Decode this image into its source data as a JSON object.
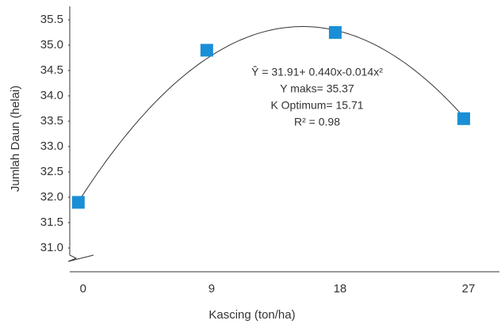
{
  "chart_data": {
    "type": "scatter",
    "x_label": "Kascing (ton/ha)",
    "y_label": "Jumlah Daun (helai)",
    "x": [
      0,
      9,
      18,
      27
    ],
    "series": [
      {
        "color": "#1a8fd6",
        "values": [
          31.9,
          34.9,
          35.25,
          33.55
        ]
      }
    ],
    "trendline": {
      "type": "polynomial",
      "coefficients": [
        31.91,
        0.44,
        -0.014
      ],
      "color": "#333333"
    },
    "annotations": [
      "Ŷ = 31.91+ 0.440x-0.014x²",
      "Y maks= 35.37",
      "K Optimum= 15.71",
      "R² = 0.98"
    ],
    "xlim": [
      -0.6,
      29.5
    ],
    "xticks": [
      0,
      9,
      18,
      27
    ],
    "ylim": [
      30.5,
      35.75
    ],
    "yticks": [
      {
        "value": 31,
        "label": "31.0"
      },
      31.5,
      {
        "value": 32,
        "label": "32.0"
      },
      32.5,
      {
        "value": 33,
        "label": "33.0"
      },
      33.5,
      {
        "value": 34,
        "label": "34.0"
      },
      34.5,
      {
        "value": 35,
        "label": "35.0"
      },
      35.5
    ],
    "axis_break": true
  }
}
